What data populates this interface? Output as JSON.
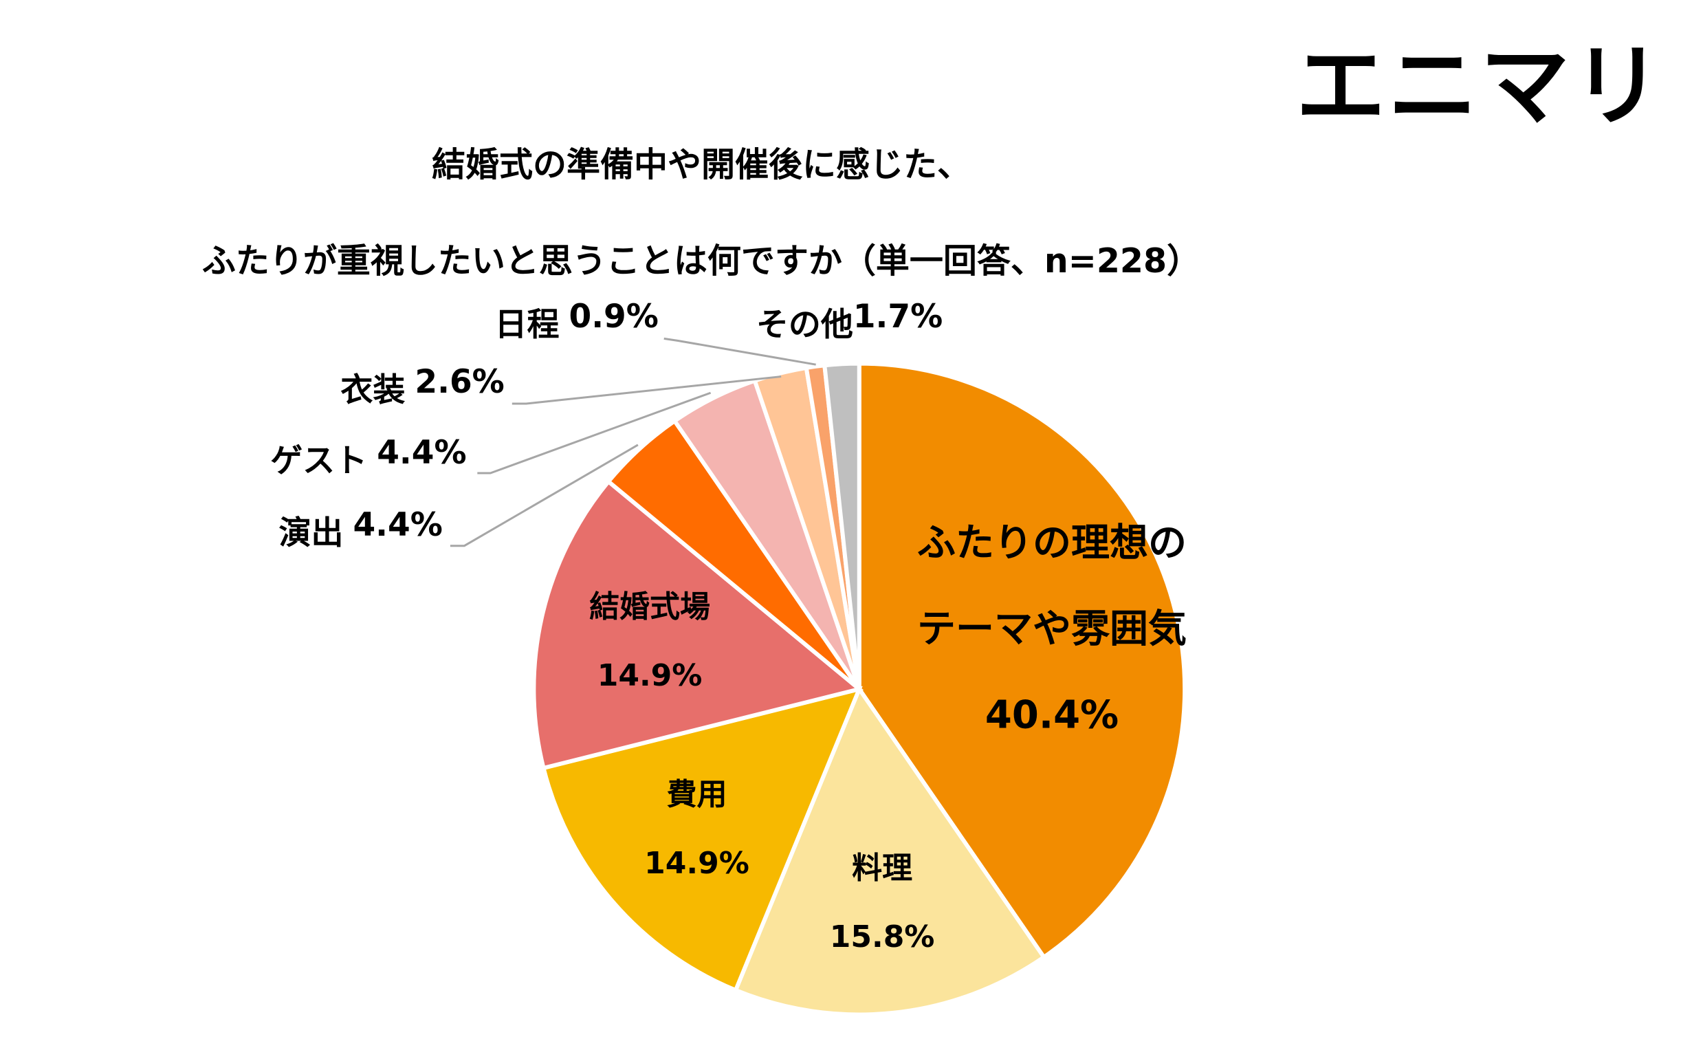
{
  "logo": "エニマリ",
  "chart_data": {
    "type": "pie",
    "title": "結婚式の準備中や開催後に感じた、\nふたりが重視したいと思うことは何ですか（単一回答、n=228）",
    "categories": [
      "ふたりの理想の\nテーマや雰囲気",
      "料理",
      "費用",
      "結婚式場",
      "演出",
      "ゲスト",
      "衣装",
      "日程",
      "その他"
    ],
    "values": [
      40.4,
      15.8,
      14.9,
      14.9,
      4.4,
      4.4,
      2.6,
      0.9,
      1.7
    ],
    "value_labels": [
      "40.4%",
      "15.8%",
      "14.9%",
      "14.9%",
      "4.4%",
      "4.4%",
      "2.6%",
      "0.9%",
      "1.7%"
    ],
    "colors": [
      "#F28C00",
      "#FBE49C",
      "#F7B900",
      "#E76F6B",
      "#FF6C00",
      "#F4B4B0",
      "#FFC596",
      "#F9A26A",
      "#BFBFBF"
    ]
  }
}
